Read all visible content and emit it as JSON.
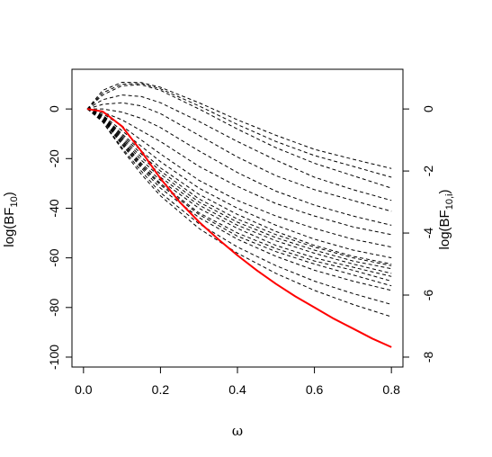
{
  "chart_data": {
    "type": "line",
    "xlabel": "ω",
    "ylabel_left": {
      "base": "log(BF",
      "sub": "10",
      "close": ")"
    },
    "ylabel_right": {
      "base": "log(BF",
      "sub": "10,i",
      "close": ")"
    },
    "xlim": [
      -0.03,
      0.83
    ],
    "ylim_left": [
      -104,
      16
    ],
    "ylim_right": [
      -8.32,
      1.28
    ],
    "x_ticks": [
      0,
      0.2,
      0.4,
      0.6,
      0.8
    ],
    "x_tick_labels": [
      "0.0",
      "0.2",
      "0.4",
      "0.6",
      "0.8"
    ],
    "y_left_ticks": [
      0,
      -20,
      -40,
      -60,
      -80,
      -100
    ],
    "y_left_tick_labels": [
      "0",
      "-20",
      "-40",
      "-60",
      "-80",
      "-100"
    ],
    "y_right_ticks": [
      0,
      -2,
      -4,
      -6,
      -8
    ],
    "y_right_tick_labels": [
      "0",
      "-2",
      "-4",
      "-6",
      "-8"
    ],
    "grid": false,
    "legend": "none",
    "main_series": {
      "axis": "left",
      "color": "#ff0000",
      "style": "solid",
      "x": [
        0.01,
        0.05,
        0.1,
        0.15,
        0.2,
        0.25,
        0.3,
        0.35,
        0.4,
        0.45,
        0.5,
        0.55,
        0.6,
        0.65,
        0.7,
        0.75,
        0.8
      ],
      "y": [
        0,
        -1,
        -7,
        -17,
        -28,
        -37.5,
        -45.5,
        -52.5,
        -59,
        -65,
        -70.5,
        -75.5,
        -80,
        -84.5,
        -88.5,
        -92.5,
        -96
      ]
    },
    "individual_series": {
      "axis": "right",
      "color": "#000000",
      "style": "dashed",
      "x": [
        0.01,
        0.05,
        0.1,
        0.15,
        0.2,
        0.3,
        0.4,
        0.5,
        0.6,
        0.7,
        0.8
      ],
      "curves": [
        [
          0,
          0.6,
          0.86,
          0.85,
          0.7,
          0.2,
          -0.35,
          -0.85,
          -1.3,
          -1.62,
          -1.92
        ],
        [
          0,
          0.52,
          0.8,
          0.82,
          0.65,
          0.1,
          -0.5,
          -1.05,
          -1.5,
          -1.85,
          -2.2
        ],
        [
          0,
          0.45,
          0.75,
          0.78,
          0.6,
          0.0,
          -0.65,
          -1.25,
          -1.75,
          -2.15,
          -2.55
        ],
        [
          0,
          0.3,
          0.45,
          0.4,
          0.2,
          -0.4,
          -1.05,
          -1.65,
          -2.2,
          -2.6,
          -2.95
        ],
        [
          0,
          0.15,
          0.2,
          0.1,
          -0.15,
          -0.85,
          -1.55,
          -2.15,
          -2.6,
          -2.95,
          -3.3
        ],
        [
          0,
          0.0,
          -0.1,
          -0.3,
          -0.6,
          -1.35,
          -2.05,
          -2.65,
          -3.1,
          -3.45,
          -3.75
        ],
        [
          0,
          -0.1,
          -0.35,
          -0.7,
          -1.05,
          -1.85,
          -2.5,
          -3.05,
          -3.45,
          -3.8,
          -4.05
        ],
        [
          0,
          -0.15,
          -0.55,
          -1.0,
          -1.45,
          -2.3,
          -2.95,
          -3.45,
          -3.85,
          -4.2,
          -4.45
        ],
        [
          0,
          -0.2,
          -0.7,
          -1.2,
          -1.7,
          -2.55,
          -3.2,
          -3.75,
          -4.2,
          -4.55,
          -4.8
        ],
        [
          0,
          -0.22,
          -0.8,
          -1.35,
          -1.9,
          -2.75,
          -3.4,
          -3.95,
          -4.4,
          -4.75,
          -5.0
        ],
        [
          0,
          -0.24,
          -0.85,
          -1.45,
          -2.0,
          -2.9,
          -3.55,
          -4.05,
          -4.45,
          -4.8,
          -5.05
        ],
        [
          0,
          -0.26,
          -0.9,
          -1.55,
          -2.1,
          -3.0,
          -3.65,
          -4.15,
          -4.55,
          -4.9,
          -5.15
        ],
        [
          0,
          -0.28,
          -0.95,
          -1.65,
          -2.2,
          -3.1,
          -3.75,
          -4.25,
          -4.65,
          -5.0,
          -5.3
        ],
        [
          0,
          -0.3,
          -1.0,
          -1.75,
          -2.3,
          -3.2,
          -3.85,
          -4.4,
          -4.8,
          -5.1,
          -5.4
        ],
        [
          0,
          -0.32,
          -1.05,
          -1.8,
          -2.4,
          -3.35,
          -4.0,
          -4.5,
          -4.9,
          -5.2,
          -5.55
        ],
        [
          0,
          -0.34,
          -1.1,
          -1.85,
          -2.45,
          -3.4,
          -4.1,
          -4.6,
          -5.0,
          -5.35,
          -5.7
        ],
        [
          0,
          -0.36,
          -1.15,
          -1.9,
          -2.55,
          -3.5,
          -4.2,
          -4.75,
          -5.2,
          -5.55,
          -5.85
        ],
        [
          0,
          -0.4,
          -1.25,
          -2.0,
          -2.7,
          -3.7,
          -4.45,
          -5.05,
          -5.55,
          -5.95,
          -6.3
        ],
        [
          0,
          -0.42,
          -1.3,
          -2.1,
          -2.8,
          -3.85,
          -4.65,
          -5.3,
          -5.85,
          -6.3,
          -6.7
        ]
      ]
    }
  }
}
